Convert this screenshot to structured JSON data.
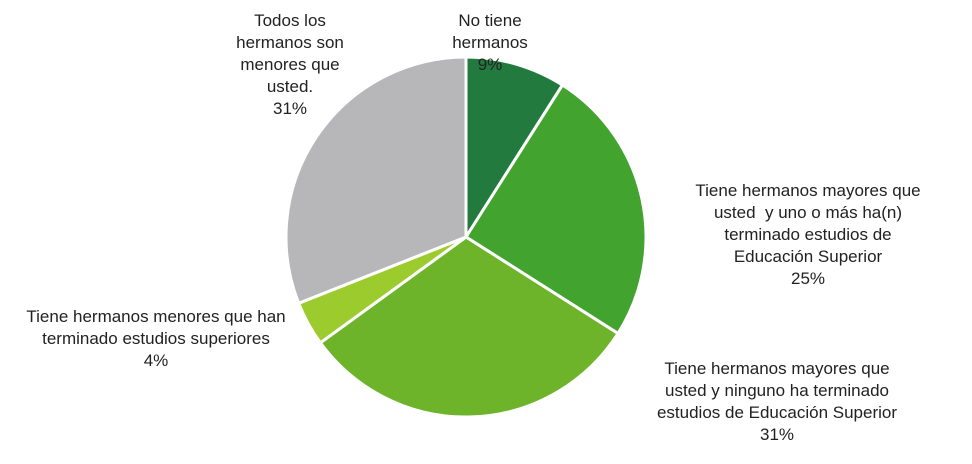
{
  "chart_data": {
    "type": "pie",
    "categories": [
      "No tiene hermanos",
      "Tiene hermanos mayores que usted  y uno o más ha(n) terminado estudios de Educación Superior",
      "Tiene hermanos mayores que usted y ninguno ha terminado estudios de Educación Superior",
      "Tiene hermanos menores que han terminado estudios superiores",
      "Todos los hermanos son menores que usted."
    ],
    "values": [
      9,
      25,
      31,
      4,
      31
    ],
    "value_labels": [
      "9%",
      "25%",
      "31%",
      "4%",
      "31%"
    ],
    "colors": [
      "#237a3e",
      "#43a32f",
      "#6db42b",
      "#9ccb2e",
      "#b7b7b9"
    ]
  }
}
